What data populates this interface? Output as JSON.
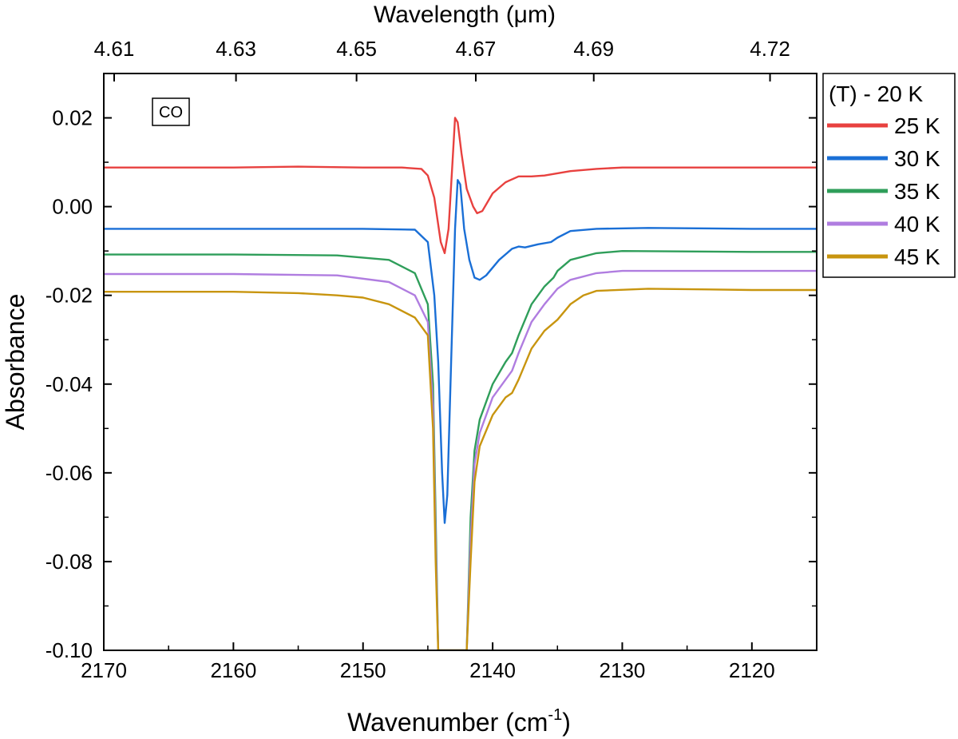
{
  "chart_data": {
    "type": "line",
    "title": "",
    "xlabel": "Wavenumber (cm",
    "xlabel_sup": "-1",
    "xlabel_close": ")",
    "ylabel": "Absorbance",
    "top_xlabel": "Wavelength (μm)",
    "annotation": "CO",
    "xlim": [
      2170,
      2115
    ],
    "ylim": [
      -0.1,
      0.03
    ],
    "x_ticks": [
      2170,
      2160,
      2150,
      2140,
      2130,
      2120
    ],
    "x_tick_labels": [
      "2170",
      "2160",
      "2150",
      "2140",
      "2130",
      "2120"
    ],
    "y_ticks": [
      0.02,
      0.0,
      -0.02,
      -0.04,
      -0.06,
      -0.08,
      -0.1
    ],
    "y_tick_labels": [
      "0.02",
      "0.00",
      "-0.02",
      "-0.04",
      "-0.06",
      "-0.08",
      "-0.10"
    ],
    "top_ticks": [
      2169.2,
      2159.8,
      2150.5,
      2141.3,
      2132.2,
      2118.6
    ],
    "top_tick_labels": [
      "4.61",
      "4.63",
      "4.65",
      "4.67",
      "4.69",
      "4.72"
    ],
    "legend": {
      "title": "(T) - 20 K",
      "position": "outside-right"
    },
    "grid": false,
    "series": [
      {
        "name": "25 K",
        "color": "#e8413f",
        "points": [
          [
            2170,
            0.0088
          ],
          [
            2160,
            0.0088
          ],
          [
            2155,
            0.009
          ],
          [
            2150,
            0.0088
          ],
          [
            2147,
            0.0088
          ],
          [
            2145.5,
            0.0085
          ],
          [
            2145,
            0.007
          ],
          [
            2144.5,
            0.002
          ],
          [
            2144.0,
            -0.008
          ],
          [
            2143.7,
            -0.0105
          ],
          [
            2143.4,
            -0.005
          ],
          [
            2143.1,
            0.01
          ],
          [
            2142.9,
            0.02
          ],
          [
            2142.7,
            0.019
          ],
          [
            2142.4,
            0.012
          ],
          [
            2142.0,
            0.004
          ],
          [
            2141.5,
            0.0
          ],
          [
            2141.2,
            -0.0015
          ],
          [
            2140.8,
            -0.001
          ],
          [
            2140.0,
            0.003
          ],
          [
            2139.0,
            0.0055
          ],
          [
            2138.0,
            0.0068
          ],
          [
            2137.0,
            0.0068
          ],
          [
            2136.0,
            0.007
          ],
          [
            2134.0,
            0.008
          ],
          [
            2132.0,
            0.0085
          ],
          [
            2130.0,
            0.0088
          ],
          [
            2120.0,
            0.0088
          ],
          [
            2115,
            0.0088
          ]
        ]
      },
      {
        "name": "30 K",
        "color": "#1a6fd6",
        "points": [
          [
            2170,
            -0.005
          ],
          [
            2160,
            -0.005
          ],
          [
            2150,
            -0.005
          ],
          [
            2146,
            -0.0052
          ],
          [
            2145,
            -0.008
          ],
          [
            2144.5,
            -0.02
          ],
          [
            2144.2,
            -0.035
          ],
          [
            2143.9,
            -0.06
          ],
          [
            2143.7,
            -0.0713
          ],
          [
            2143.5,
            -0.065
          ],
          [
            2143.2,
            -0.035
          ],
          [
            2142.9,
            -0.005
          ],
          [
            2142.7,
            0.006
          ],
          [
            2142.5,
            0.005
          ],
          [
            2142.2,
            -0.005
          ],
          [
            2141.8,
            -0.012
          ],
          [
            2141.4,
            -0.016
          ],
          [
            2141.0,
            -0.0165
          ],
          [
            2140.5,
            -0.0155
          ],
          [
            2139.5,
            -0.012
          ],
          [
            2138.5,
            -0.0095
          ],
          [
            2138.0,
            -0.009
          ],
          [
            2137.5,
            -0.0092
          ],
          [
            2136.5,
            -0.0085
          ],
          [
            2135.5,
            -0.008
          ],
          [
            2135.0,
            -0.007
          ],
          [
            2134.0,
            -0.0055
          ],
          [
            2132.0,
            -0.005
          ],
          [
            2128.0,
            -0.0048
          ],
          [
            2120.0,
            -0.005
          ],
          [
            2115,
            -0.005
          ]
        ]
      },
      {
        "name": "35 K",
        "color": "#2f9e5a",
        "points": [
          [
            2170,
            -0.0108
          ],
          [
            2160,
            -0.0108
          ],
          [
            2152,
            -0.011
          ],
          [
            2148,
            -0.012
          ],
          [
            2146,
            -0.015
          ],
          [
            2145,
            -0.022
          ],
          [
            2144.6,
            -0.04
          ],
          [
            2144.4,
            -0.07
          ],
          [
            2144.2,
            -0.1
          ],
          [
            2142.0,
            -0.1
          ],
          [
            2141.7,
            -0.07
          ],
          [
            2141.4,
            -0.055
          ],
          [
            2141.0,
            -0.048
          ],
          [
            2140.0,
            -0.04
          ],
          [
            2139.0,
            -0.035
          ],
          [
            2138.5,
            -0.033
          ],
          [
            2138.0,
            -0.029
          ],
          [
            2137.0,
            -0.022
          ],
          [
            2136.0,
            -0.018
          ],
          [
            2135.3,
            -0.016
          ],
          [
            2135.0,
            -0.0145
          ],
          [
            2134.0,
            -0.012
          ],
          [
            2132.0,
            -0.0105
          ],
          [
            2130.0,
            -0.01
          ],
          [
            2120.0,
            -0.0102
          ],
          [
            2115,
            -0.0102
          ]
        ]
      },
      {
        "name": "40 K",
        "color": "#b07de0",
        "points": [
          [
            2170,
            -0.0152
          ],
          [
            2160,
            -0.0152
          ],
          [
            2152,
            -0.0155
          ],
          [
            2148,
            -0.017
          ],
          [
            2146,
            -0.02
          ],
          [
            2145,
            -0.026
          ],
          [
            2144.6,
            -0.045
          ],
          [
            2144.4,
            -0.075
          ],
          [
            2144.2,
            -0.1
          ],
          [
            2142.0,
            -0.1
          ],
          [
            2141.7,
            -0.075
          ],
          [
            2141.4,
            -0.058
          ],
          [
            2141.0,
            -0.051
          ],
          [
            2140.0,
            -0.043
          ],
          [
            2139.0,
            -0.039
          ],
          [
            2138.5,
            -0.037
          ],
          [
            2138.0,
            -0.033
          ],
          [
            2137.0,
            -0.026
          ],
          [
            2136.0,
            -0.022
          ],
          [
            2135.0,
            -0.0185
          ],
          [
            2134.0,
            -0.0165
          ],
          [
            2132.0,
            -0.015
          ],
          [
            2130.0,
            -0.0145
          ],
          [
            2120.0,
            -0.0145
          ],
          [
            2115,
            -0.0145
          ]
        ]
      },
      {
        "name": "45 K",
        "color": "#c8950f",
        "points": [
          [
            2170,
            -0.0192
          ],
          [
            2160,
            -0.0192
          ],
          [
            2155,
            -0.0195
          ],
          [
            2152,
            -0.02
          ],
          [
            2150,
            -0.0205
          ],
          [
            2148,
            -0.022
          ],
          [
            2146,
            -0.025
          ],
          [
            2145,
            -0.029
          ],
          [
            2144.6,
            -0.05
          ],
          [
            2144.4,
            -0.08
          ],
          [
            2144.2,
            -0.1
          ],
          [
            2142.0,
            -0.1
          ],
          [
            2141.7,
            -0.08
          ],
          [
            2141.4,
            -0.062
          ],
          [
            2141.0,
            -0.054
          ],
          [
            2140.0,
            -0.047
          ],
          [
            2139.0,
            -0.043
          ],
          [
            2138.5,
            -0.042
          ],
          [
            2138.0,
            -0.039
          ],
          [
            2137.0,
            -0.032
          ],
          [
            2136.0,
            -0.028
          ],
          [
            2135.0,
            -0.0255
          ],
          [
            2134.0,
            -0.022
          ],
          [
            2133.0,
            -0.02
          ],
          [
            2132.0,
            -0.019
          ],
          [
            2128.0,
            -0.0185
          ],
          [
            2120.0,
            -0.0188
          ],
          [
            2115,
            -0.0188
          ]
        ]
      }
    ]
  }
}
